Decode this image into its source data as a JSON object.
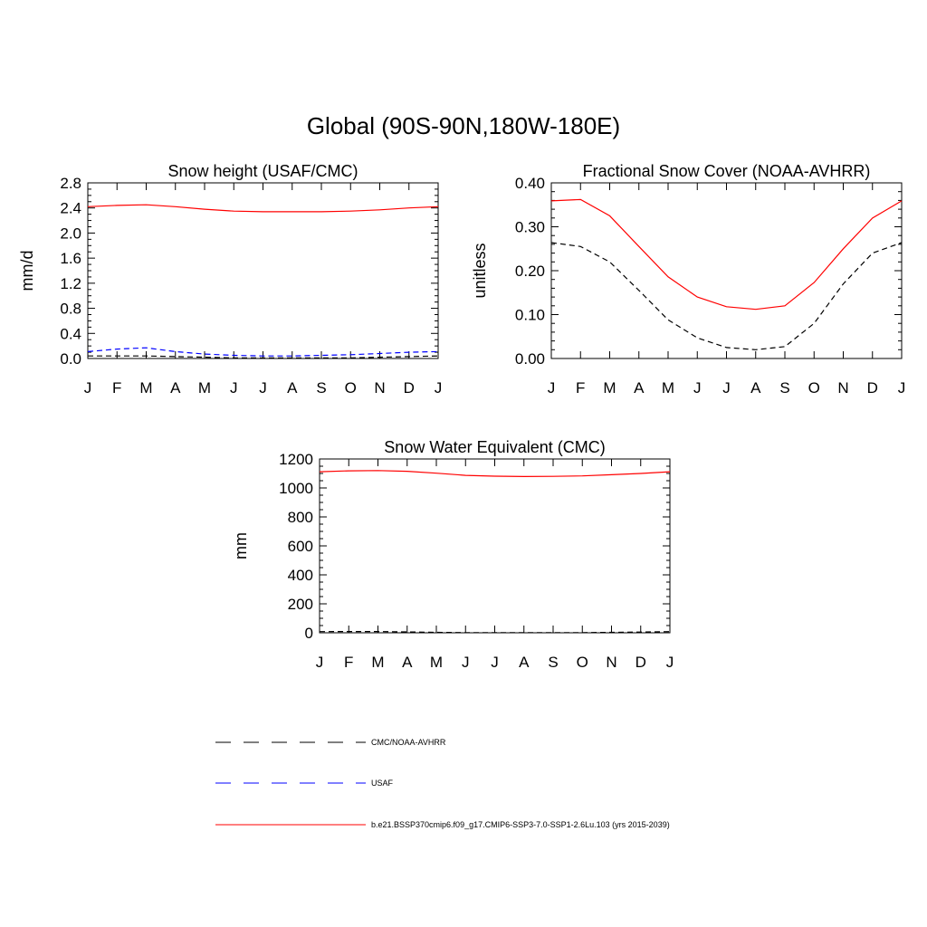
{
  "figure": {
    "title": "Global (90S-90N,180W-180E)"
  },
  "legend": [
    {
      "label": "CMC/NOAA-AVHRR",
      "color": "#000000",
      "dash": "dashed"
    },
    {
      "label": "USAF",
      "color": "#0000ff",
      "dash": "dashed"
    },
    {
      "label": "b.e21.BSSP370cmip6.f09_g17.CMIP6-SSP3-7.0-SSP1-2.6Lu.103 (yrs 2015-2039)",
      "color": "#ff0000",
      "dash": "solid"
    }
  ],
  "chart_data": [
    {
      "type": "line",
      "title": "Snow height (USAF/CMC)",
      "xlabel": "",
      "ylabel": "mm/d",
      "categories": [
        "J",
        "F",
        "M",
        "A",
        "M",
        "J",
        "J",
        "A",
        "S",
        "O",
        "N",
        "D",
        "J"
      ],
      "ylim": [
        0,
        2.8
      ],
      "yticks": [
        "0.0",
        "0.4",
        "0.8",
        "1.2",
        "1.6",
        "2.0",
        "2.4",
        "2.8"
      ],
      "grid": false,
      "series": [
        {
          "name": "b.e21.BSSP370cmip6.f09_g17.CMIP6-SSP3-7.0-SSP1-2.6Lu.103 (yrs 2015-2039)",
          "color": "#ff0000",
          "dash": "solid",
          "values": [
            2.42,
            2.44,
            2.45,
            2.42,
            2.38,
            2.35,
            2.34,
            2.34,
            2.34,
            2.35,
            2.37,
            2.4,
            2.42
          ]
        },
        {
          "name": "USAF",
          "color": "#0000ff",
          "dash": "dashed",
          "values": [
            0.11,
            0.15,
            0.17,
            0.11,
            0.07,
            0.05,
            0.04,
            0.04,
            0.05,
            0.06,
            0.08,
            0.1,
            0.11
          ]
        },
        {
          "name": "CMC/NOAA-AVHRR",
          "color": "#000000",
          "dash": "dashed",
          "values": [
            0.04,
            0.04,
            0.04,
            0.03,
            0.02,
            0.01,
            0.01,
            0.01,
            0.01,
            0.01,
            0.02,
            0.03,
            0.04
          ]
        }
      ]
    },
    {
      "type": "line",
      "title": "Fractional Snow Cover (NOAA-AVHRR)",
      "xlabel": "",
      "ylabel": "unitless",
      "categories": [
        "J",
        "F",
        "M",
        "A",
        "M",
        "J",
        "J",
        "A",
        "S",
        "O",
        "N",
        "D",
        "J"
      ],
      "ylim": [
        0,
        0.4
      ],
      "yticks": [
        "0.00",
        "0.10",
        "0.20",
        "0.30",
        "0.40"
      ],
      "grid": false,
      "series": [
        {
          "name": "b.e21.BSSP370cmip6.f09_g17.CMIP6-SSP3-7.0-SSP1-2.6Lu.103 (yrs 2015-2039)",
          "color": "#ff0000",
          "dash": "solid",
          "values": [
            0.359,
            0.362,
            0.325,
            0.255,
            0.186,
            0.14,
            0.118,
            0.112,
            0.12,
            0.173,
            0.25,
            0.32,
            0.359
          ]
        },
        {
          "name": "CMC/NOAA-AVHRR",
          "color": "#000000",
          "dash": "dashed",
          "values": [
            0.264,
            0.255,
            0.22,
            0.155,
            0.088,
            0.047,
            0.025,
            0.02,
            0.027,
            0.08,
            0.17,
            0.24,
            0.264
          ]
        }
      ]
    },
    {
      "type": "line",
      "title": "Snow Water Equivalent (CMC)",
      "xlabel": "",
      "ylabel": "mm",
      "categories": [
        "J",
        "F",
        "M",
        "A",
        "M",
        "J",
        "J",
        "A",
        "S",
        "O",
        "N",
        "D",
        "J"
      ],
      "ylim": [
        0,
        1200
      ],
      "yticks": [
        "0",
        "200",
        "400",
        "600",
        "800",
        "1000",
        "1200"
      ],
      "grid": false,
      "series": [
        {
          "name": "b.e21.BSSP370cmip6.f09_g17.CMIP6-SSP3-7.0-SSP1-2.6Lu.103 (yrs 2015-2039)",
          "color": "#ff0000",
          "dash": "solid",
          "values": [
            1112,
            1118,
            1120,
            1115,
            1102,
            1087,
            1081,
            1079,
            1080,
            1083,
            1091,
            1100,
            1112
          ]
        },
        {
          "name": "CMC/NOAA-AVHRR",
          "color": "#000000",
          "dash": "dashed",
          "values": [
            8,
            9,
            9,
            6,
            3,
            1,
            1,
            1,
            1,
            1,
            3,
            5,
            8
          ]
        }
      ]
    }
  ]
}
